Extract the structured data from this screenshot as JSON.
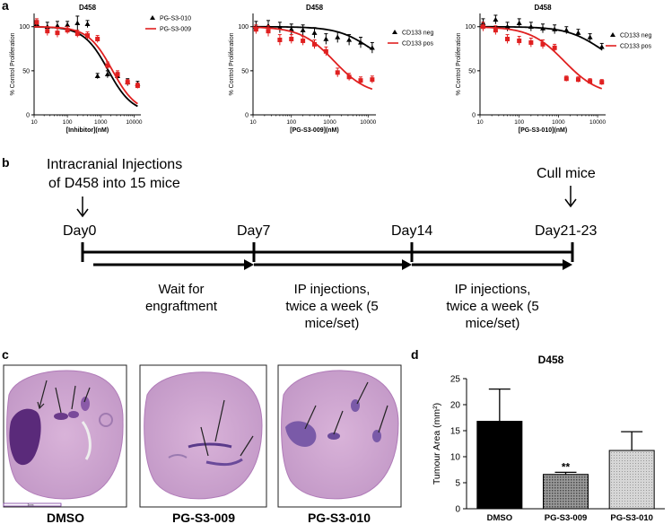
{
  "panels": {
    "a": "a",
    "b": "b",
    "c": "c",
    "d": "d"
  },
  "chart_data": [
    {
      "type": "scatter",
      "panel": "a-1",
      "title": "D458",
      "xlabel": "[Inhibitor](nM)",
      "ylabel": "% Control Proliferation",
      "xscale": "log",
      "xlim": [
        10,
        16000
      ],
      "ylim": [
        0,
        115
      ],
      "xticks": [
        10,
        100,
        1000,
        10000
      ],
      "xticklabels": [
        "10",
        "100",
        "1000",
        "10000"
      ],
      "yticks": [
        0,
        50,
        100
      ],
      "yticklabels": [
        "0",
        "50",
        "100"
      ],
      "legend_position": "top-right",
      "series": [
        {
          "name": "PG-S3-010",
          "color": "#000000",
          "marker": "triangle",
          "x": [
            12,
            25,
            50,
            100,
            200,
            400,
            800,
            1600,
            3200,
            6400,
            12800
          ],
          "y": [
            103,
            100,
            101,
            102,
            104,
            103,
            44,
            46,
            44,
            37,
            35
          ],
          "err": [
            4,
            5,
            5,
            4,
            8,
            4,
            3,
            4,
            4,
            4,
            3
          ],
          "fit": {
            "top": 100,
            "bottom": 2,
            "ic50": 1650,
            "hill": 1.2
          }
        },
        {
          "name": "PG-S3-009",
          "color": "#e02020",
          "marker": "square",
          "x": [
            12,
            25,
            50,
            100,
            200,
            400,
            800,
            1600,
            3200,
            6400,
            12800
          ],
          "y": [
            105,
            95,
            93,
            96,
            92,
            90,
            86,
            56,
            46,
            37,
            33
          ],
          "err": [
            4,
            5,
            5,
            4,
            4,
            4,
            4,
            4,
            4,
            3,
            3
          ],
          "fit": {
            "top": 100,
            "bottom": 2,
            "ic50": 2200,
            "hill": 1.2
          }
        }
      ]
    },
    {
      "type": "scatter",
      "panel": "a-2",
      "title": "D458",
      "xlabel": "[PG-S3-009](nM)",
      "ylabel": "% Control Proliferation",
      "xscale": "log",
      "xlim": [
        10,
        16000
      ],
      "ylim": [
        0,
        115
      ],
      "xticks": [
        10,
        100,
        1000,
        10000
      ],
      "xticklabels": [
        "10",
        "100",
        "1000",
        "10000"
      ],
      "yticks": [
        0,
        50,
        100
      ],
      "yticklabels": [
        "0",
        "50",
        "100"
      ],
      "legend_position": "top-right",
      "series": [
        {
          "name": "CD133 neg",
          "color": "#000000",
          "marker": "triangle",
          "x": [
            12,
            25,
            50,
            100,
            200,
            400,
            800,
            1600,
            3200,
            6400,
            12800
          ],
          "y": [
            100,
            101,
            99,
            97,
            96,
            93,
            86,
            88,
            85,
            82,
            76
          ],
          "err": [
            6,
            6,
            6,
            6,
            6,
            6,
            6,
            6,
            6,
            6,
            6
          ],
          "fit": {
            "top": 100,
            "bottom": 50,
            "ic50": 12000,
            "hill": 1.0
          }
        },
        {
          "name": "CD133 pos",
          "color": "#e02020",
          "marker": "square",
          "x": [
            12,
            25,
            50,
            100,
            200,
            400,
            800,
            1600,
            3200,
            6400,
            12800
          ],
          "y": [
            97,
            95,
            85,
            86,
            84,
            80,
            72,
            48,
            43,
            39,
            40
          ],
          "err": [
            5,
            6,
            6,
            5,
            5,
            5,
            5,
            5,
            4,
            4,
            4
          ],
          "fit": {
            "top": 100,
            "bottom": 22,
            "ic50": 1300,
            "hill": 1.0
          }
        }
      ]
    },
    {
      "type": "scatter",
      "panel": "a-3",
      "title": "D458",
      "xlabel": "[PG-S3-010](nM)",
      "ylabel": "% Control Proliferation",
      "xscale": "log",
      "xlim": [
        10,
        16000
      ],
      "ylim": [
        0,
        115
      ],
      "xticks": [
        10,
        100,
        1000,
        10000
      ],
      "xticklabels": [
        "10",
        "100",
        "1000",
        "10000"
      ],
      "yticks": [
        0,
        50,
        100
      ],
      "yticklabels": [
        "0",
        "50",
        "100"
      ],
      "legend_position": "top-right",
      "series": [
        {
          "name": "CD133 neg",
          "color": "#000000",
          "marker": "triangle",
          "x": [
            12,
            25,
            50,
            100,
            200,
            400,
            800,
            1600,
            3200,
            6400,
            12800
          ],
          "y": [
            104,
            108,
            100,
            104,
            100,
            98,
            97,
            96,
            93,
            88,
            77
          ],
          "err": [
            5,
            5,
            5,
            5,
            5,
            5,
            5,
            4,
            4,
            4,
            4
          ],
          "fit": {
            "top": 100,
            "bottom": 50,
            "ic50": 12000,
            "hill": 1.0
          }
        },
        {
          "name": "CD133 pos",
          "color": "#e02020",
          "marker": "square",
          "x": [
            12,
            25,
            50,
            100,
            200,
            400,
            800,
            1600,
            3200,
            6400,
            12800
          ],
          "y": [
            100,
            96,
            86,
            84,
            82,
            80,
            76,
            41,
            40,
            38,
            37
          ],
          "err": [
            5,
            5,
            5,
            5,
            5,
            5,
            4,
            3,
            3,
            3,
            3
          ],
          "fit": {
            "top": 100,
            "bottom": 22,
            "ic50": 1400,
            "hill": 1.0
          }
        }
      ]
    },
    {
      "type": "bar",
      "panel": "d",
      "title": "D458",
      "ylabel": "Tumour Area (mm²)",
      "categories": [
        "DMSO",
        "PG-S3-009",
        "PG-S3-010"
      ],
      "values": [
        16.8,
        6.6,
        11.2
      ],
      "errors": [
        6.2,
        0.4,
        3.6
      ],
      "annotations": [
        "",
        "**",
        ""
      ],
      "ylim": [
        0,
        25
      ],
      "yticks": [
        0,
        5,
        10,
        15,
        20,
        25
      ],
      "yticklabels": [
        "0",
        "5",
        "10",
        "15",
        "20",
        "25"
      ],
      "fills": [
        "#000000",
        "#777777",
        "#c8c8c8"
      ]
    }
  ],
  "timeline": {
    "injection_note_line1": "Intracranial Injections",
    "injection_note_line2": "of D458 into 15 mice",
    "cull_label": "Cull mice",
    "days": [
      "Day0",
      "Day7",
      "Day14",
      "Day21-23"
    ],
    "phases": [
      {
        "line1": "Wait for",
        "line2": "engraftment"
      },
      {
        "line1": "IP injections,",
        "line2": "twice a week (5",
        "line3": "mice/set)"
      },
      {
        "line1": "IP injections,",
        "line2": "twice a week (5",
        "line3": "mice/set)"
      }
    ]
  },
  "histology": {
    "labels": [
      "DMSO",
      "PG-S3-009",
      "PG-S3-010"
    ],
    "scale_bar_label": "3mm"
  }
}
